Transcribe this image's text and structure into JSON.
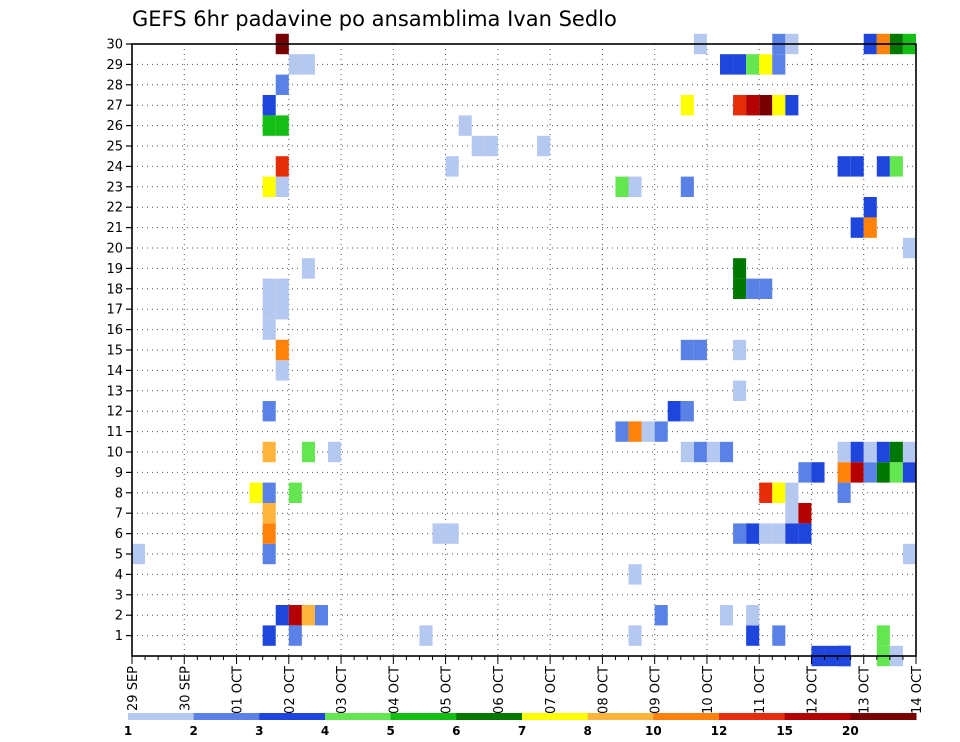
{
  "chart_data": {
    "type": "heatmap",
    "title": "GEFS 6hr padavine po ansamblima Ivan Sedlo",
    "xlabel": "",
    "ylabel": "",
    "x_ticks": [
      "29 SEP",
      "30 SEP",
      "01 OCT",
      "02 OCT",
      "03 OCT",
      "04 OCT",
      "05 OCT",
      "06 OCT",
      "07 OCT",
      "08 OCT",
      "09 OCT",
      "10 OCT",
      "11 OCT",
      "12 OCT",
      "13 OCT",
      "14 OCT"
    ],
    "x_start": "29 SEP 00Z",
    "time_step_hours": 6,
    "y_ticks": [
      1,
      2,
      3,
      4,
      5,
      6,
      7,
      8,
      9,
      10,
      11,
      12,
      13,
      14,
      15,
      16,
      17,
      18,
      19,
      20,
      21,
      22,
      23,
      24,
      25,
      26,
      27,
      28,
      29,
      30
    ],
    "ylim": [
      0,
      30
    ],
    "grid": true,
    "colorbar": {
      "labels": [
        "1",
        "2",
        "3",
        "4",
        "5",
        "6",
        "7",
        "8",
        "10",
        "12",
        "15",
        "20"
      ],
      "colors": [
        "#b4c8f0",
        "#5a82e6",
        "#1e46dc",
        "#64e650",
        "#14be14",
        "#007800",
        "#ffff00",
        "#ffb43c",
        "#ff820a",
        "#e62d0a",
        "#b40000",
        "#780000"
      ]
    },
    "cells": [
      {
        "t": 52,
        "m": 0,
        "c": 3
      },
      {
        "t": 53,
        "m": 0,
        "c": 3
      },
      {
        "t": 54,
        "m": 0,
        "c": 3
      },
      {
        "t": 57,
        "m": 0,
        "c": 4
      },
      {
        "t": 58,
        "m": 0,
        "c": 1
      },
      {
        "t": 47,
        "m": 1,
        "c": 3
      },
      {
        "t": 49,
        "m": 1,
        "c": 2
      },
      {
        "t": 57,
        "m": 1,
        "c": 4
      },
      {
        "t": 38,
        "m": 1,
        "c": 1
      },
      {
        "t": 54,
        "m": 0,
        "c": 3
      },
      {
        "t": 11,
        "m": 2,
        "c": 3
      },
      {
        "t": 12,
        "m": 2,
        "c": 11
      },
      {
        "t": 13,
        "m": 2,
        "c": 8
      },
      {
        "t": 14,
        "m": 2,
        "c": 2
      },
      {
        "t": 40,
        "m": 2,
        "c": 2
      },
      {
        "t": 45,
        "m": 2,
        "c": 1
      },
      {
        "t": 47,
        "m": 2,
        "c": 1
      },
      {
        "t": 10,
        "m": 1,
        "c": 3
      },
      {
        "t": 12,
        "m": 1,
        "c": 2
      },
      {
        "t": 22,
        "m": 1,
        "c": 1
      },
      {
        "t": 38,
        "m": 4,
        "c": 1
      },
      {
        "t": 0,
        "m": 5,
        "c": 1
      },
      {
        "t": 10,
        "m": 5,
        "c": 2
      },
      {
        "t": 59,
        "m": 5,
        "c": 1
      },
      {
        "t": 10,
        "m": 6,
        "c": 9
      },
      {
        "t": 23,
        "m": 6,
        "c": 1
      },
      {
        "t": 24,
        "m": 6,
        "c": 1
      },
      {
        "t": 46,
        "m": 6,
        "c": 2
      },
      {
        "t": 47,
        "m": 6,
        "c": 3
      },
      {
        "t": 48,
        "m": 6,
        "c": 1
      },
      {
        "t": 49,
        "m": 6,
        "c": 1
      },
      {
        "t": 50,
        "m": 6,
        "c": 3
      },
      {
        "t": 51,
        "m": 6,
        "c": 3
      },
      {
        "t": 10,
        "m": 7,
        "c": 8
      },
      {
        "t": 50,
        "m": 7,
        "c": 1
      },
      {
        "t": 51,
        "m": 7,
        "c": 11
      },
      {
        "t": 9,
        "m": 8,
        "c": 7
      },
      {
        "t": 10,
        "m": 8,
        "c": 2
      },
      {
        "t": 12,
        "m": 8,
        "c": 4
      },
      {
        "t": 48,
        "m": 8,
        "c": 10
      },
      {
        "t": 49,
        "m": 8,
        "c": 7
      },
      {
        "t": 50,
        "m": 8,
        "c": 1
      },
      {
        "t": 54,
        "m": 8,
        "c": 2
      },
      {
        "t": 51,
        "m": 9,
        "c": 2
      },
      {
        "t": 52,
        "m": 9,
        "c": 3
      },
      {
        "t": 54,
        "m": 9,
        "c": 9
      },
      {
        "t": 55,
        "m": 9,
        "c": 11
      },
      {
        "t": 56,
        "m": 9,
        "c": 2
      },
      {
        "t": 57,
        "m": 9,
        "c": 6
      },
      {
        "t": 58,
        "m": 9,
        "c": 4
      },
      {
        "t": 59,
        "m": 9,
        "c": 3
      },
      {
        "t": 10,
        "m": 10,
        "c": 8
      },
      {
        "t": 13,
        "m": 10,
        "c": 4
      },
      {
        "t": 15,
        "m": 10,
        "c": 1
      },
      {
        "t": 42,
        "m": 10,
        "c": 1
      },
      {
        "t": 43,
        "m": 10,
        "c": 2
      },
      {
        "t": 44,
        "m": 10,
        "c": 1
      },
      {
        "t": 45,
        "m": 10,
        "c": 2
      },
      {
        "t": 54,
        "m": 10,
        "c": 1
      },
      {
        "t": 55,
        "m": 10,
        "c": 3
      },
      {
        "t": 56,
        "m": 10,
        "c": 1
      },
      {
        "t": 57,
        "m": 10,
        "c": 3
      },
      {
        "t": 58,
        "m": 10,
        "c": 6
      },
      {
        "t": 59,
        "m": 10,
        "c": 1
      },
      {
        "t": 37,
        "m": 11,
        "c": 2
      },
      {
        "t": 38,
        "m": 11,
        "c": 9
      },
      {
        "t": 39,
        "m": 11,
        "c": 1
      },
      {
        "t": 40,
        "m": 11,
        "c": 2
      },
      {
        "t": 10,
        "m": 12,
        "c": 2
      },
      {
        "t": 41,
        "m": 12,
        "c": 3
      },
      {
        "t": 42,
        "m": 12,
        "c": 2
      },
      {
        "t": 46,
        "m": 13,
        "c": 1
      },
      {
        "t": 11,
        "m": 14,
        "c": 1
      },
      {
        "t": 11,
        "m": 15,
        "c": 9
      },
      {
        "t": 42,
        "m": 15,
        "c": 2
      },
      {
        "t": 43,
        "m": 15,
        "c": 2
      },
      {
        "t": 46,
        "m": 15,
        "c": 1
      },
      {
        "t": 10,
        "m": 16,
        "c": 1
      },
      {
        "t": 10,
        "m": 17,
        "c": 1
      },
      {
        "t": 11,
        "m": 17,
        "c": 1
      },
      {
        "t": 10,
        "m": 18,
        "c": 1
      },
      {
        "t": 11,
        "m": 18,
        "c": 1
      },
      {
        "t": 46,
        "m": 18,
        "c": 6
      },
      {
        "t": 47,
        "m": 18,
        "c": 2
      },
      {
        "t": 48,
        "m": 18,
        "c": 2
      },
      {
        "t": 13,
        "m": 19,
        "c": 1
      },
      {
        "t": 46,
        "m": 19,
        "c": 6
      },
      {
        "t": 59,
        "m": 20,
        "c": 1
      },
      {
        "t": 55,
        "m": 21,
        "c": 3
      },
      {
        "t": 56,
        "m": 21,
        "c": 9
      },
      {
        "t": 56,
        "m": 22,
        "c": 3
      },
      {
        "t": 10,
        "m": 23,
        "c": 7
      },
      {
        "t": 11,
        "m": 23,
        "c": 1
      },
      {
        "t": 37,
        "m": 23,
        "c": 4
      },
      {
        "t": 38,
        "m": 23,
        "c": 1
      },
      {
        "t": 42,
        "m": 23,
        "c": 2
      },
      {
        "t": 11,
        "m": 24,
        "c": 10
      },
      {
        "t": 24,
        "m": 24,
        "c": 1
      },
      {
        "t": 54,
        "m": 24,
        "c": 3
      },
      {
        "t": 55,
        "m": 24,
        "c": 3
      },
      {
        "t": 57,
        "m": 24,
        "c": 3
      },
      {
        "t": 58,
        "m": 24,
        "c": 4
      },
      {
        "t": 26,
        "m": 25,
        "c": 1
      },
      {
        "t": 27,
        "m": 25,
        "c": 1
      },
      {
        "t": 31,
        "m": 25,
        "c": 1
      },
      {
        "t": 10,
        "m": 26,
        "c": 5
      },
      {
        "t": 11,
        "m": 26,
        "c": 5
      },
      {
        "t": 25,
        "m": 26,
        "c": 1
      },
      {
        "t": 10,
        "m": 27,
        "c": 3
      },
      {
        "t": 42,
        "m": 27,
        "c": 7
      },
      {
        "t": 46,
        "m": 27,
        "c": 10
      },
      {
        "t": 47,
        "m": 27,
        "c": 11
      },
      {
        "t": 48,
        "m": 27,
        "c": 12
      },
      {
        "t": 49,
        "m": 27,
        "c": 7
      },
      {
        "t": 50,
        "m": 27,
        "c": 3
      },
      {
        "t": 11,
        "m": 28,
        "c": 2
      },
      {
        "t": 12,
        "m": 29,
        "c": 1
      },
      {
        "t": 13,
        "m": 29,
        "c": 1
      },
      {
        "t": 45,
        "m": 29,
        "c": 3
      },
      {
        "t": 46,
        "m": 29,
        "c": 3
      },
      {
        "t": 47,
        "m": 29,
        "c": 4
      },
      {
        "t": 48,
        "m": 29,
        "c": 7
      },
      {
        "t": 49,
        "m": 29,
        "c": 2
      },
      {
        "t": 11,
        "m": 30,
        "c": 12
      },
      {
        "t": 43,
        "m": 30,
        "c": 1
      },
      {
        "t": 49,
        "m": 30,
        "c": 2
      },
      {
        "t": 50,
        "m": 30,
        "c": 1
      },
      {
        "t": 56,
        "m": 30,
        "c": 3
      },
      {
        "t": 57,
        "m": 30,
        "c": 9
      },
      {
        "t": 58,
        "m": 30,
        "c": 6
      },
      {
        "t": 59,
        "m": 30,
        "c": 5
      }
    ]
  }
}
